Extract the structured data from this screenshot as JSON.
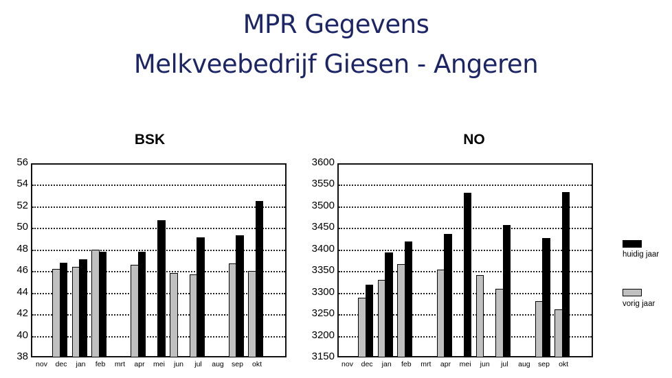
{
  "header": {
    "title_line1": "MPR Gegevens",
    "title_line2": "Melkveebedrijf Giesen - Angeren"
  },
  "legend": {
    "current": {
      "label": "huidig jaar",
      "color": "#000000"
    },
    "previous": {
      "label": "vorig jaar",
      "color": "#c0c0c0"
    }
  },
  "chart_data": [
    {
      "type": "bar",
      "title": "BSK",
      "xlabel": "",
      "ylabel": "",
      "ylim": [
        38,
        56
      ],
      "yticks": [
        38,
        40,
        42,
        44,
        46,
        48,
        50,
        52,
        54,
        56
      ],
      "grid": true,
      "legend_position": "right",
      "categories": [
        "nov",
        "dec",
        "jan",
        "feb",
        "mrt",
        "apr",
        "mei",
        "jun",
        "jul",
        "aug",
        "sep",
        "okt"
      ],
      "series": [
        {
          "name": "vorig jaar",
          "color": "#c0c0c0",
          "values": [
            null,
            46.2,
            46.4,
            48.0,
            null,
            46.6,
            null,
            45.8,
            45.7,
            null,
            46.7,
            46.0
          ]
        },
        {
          "name": "huidig jaar",
          "color": "#000000",
          "values": [
            null,
            46.8,
            47.1,
            47.8,
            null,
            47.8,
            50.7,
            null,
            49.1,
            null,
            49.3,
            52.5
          ]
        }
      ]
    },
    {
      "type": "bar",
      "title": "NO",
      "xlabel": "",
      "ylabel": "",
      "ylim": [
        3150,
        3600
      ],
      "yticks": [
        3150,
        3200,
        3250,
        3300,
        3350,
        3400,
        3450,
        3500,
        3550,
        3600
      ],
      "grid": true,
      "legend_position": "right",
      "categories": [
        "nov",
        "dec",
        "jan",
        "feb",
        "mrt",
        "apr",
        "mei",
        "jun",
        "jul",
        "aug",
        "sep",
        "okt"
      ],
      "series": [
        {
          "name": "vorig jaar",
          "color": "#c0c0c0",
          "values": [
            null,
            3288,
            3330,
            3366,
            null,
            3353,
            null,
            3341,
            3309,
            null,
            3280,
            3262
          ]
        },
        {
          "name": "huidig jaar",
          "color": "#000000",
          "values": [
            null,
            3318,
            3393,
            3419,
            null,
            3437,
            3532,
            null,
            3457,
            null,
            3427,
            3533
          ]
        }
      ]
    }
  ]
}
